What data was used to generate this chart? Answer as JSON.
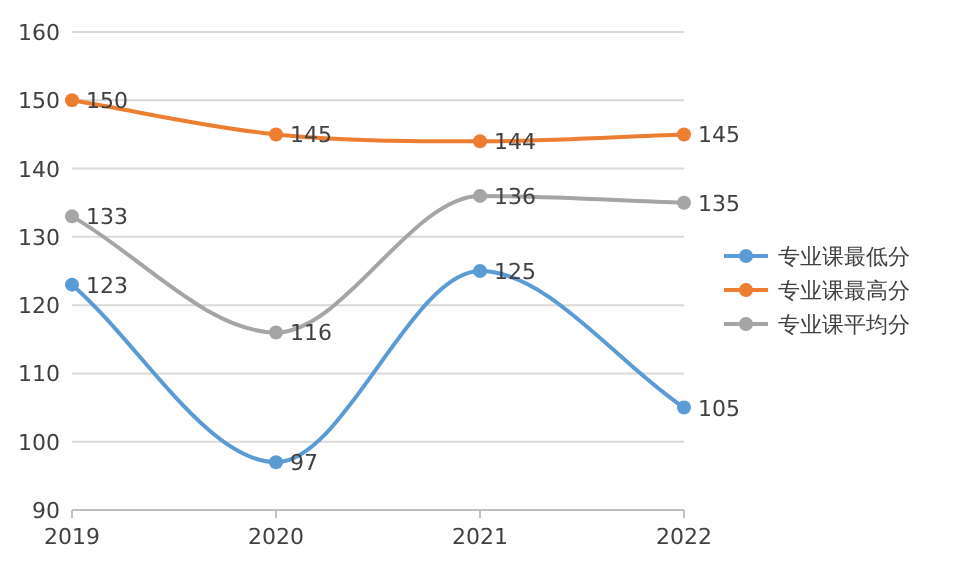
{
  "chart_data": {
    "type": "line",
    "categories": [
      "2019",
      "2020",
      "2021",
      "2022"
    ],
    "series": [
      {
        "name": "专业课最低分",
        "color": "#5b9bd5",
        "values": [
          123,
          97,
          125,
          105
        ]
      },
      {
        "name": "专业课最高分",
        "color": "#ed7d31",
        "values": [
          150,
          145,
          144,
          145
        ]
      },
      {
        "name": "专业课平均分",
        "color": "#a5a5a5",
        "values": [
          133,
          116,
          136,
          135
        ]
      }
    ],
    "ylim": [
      90,
      160
    ],
    "yticks": [
      90,
      100,
      110,
      120,
      130,
      140,
      150,
      160
    ],
    "grid": "y",
    "legend": "right",
    "marker": "circle",
    "data_labels": true
  }
}
